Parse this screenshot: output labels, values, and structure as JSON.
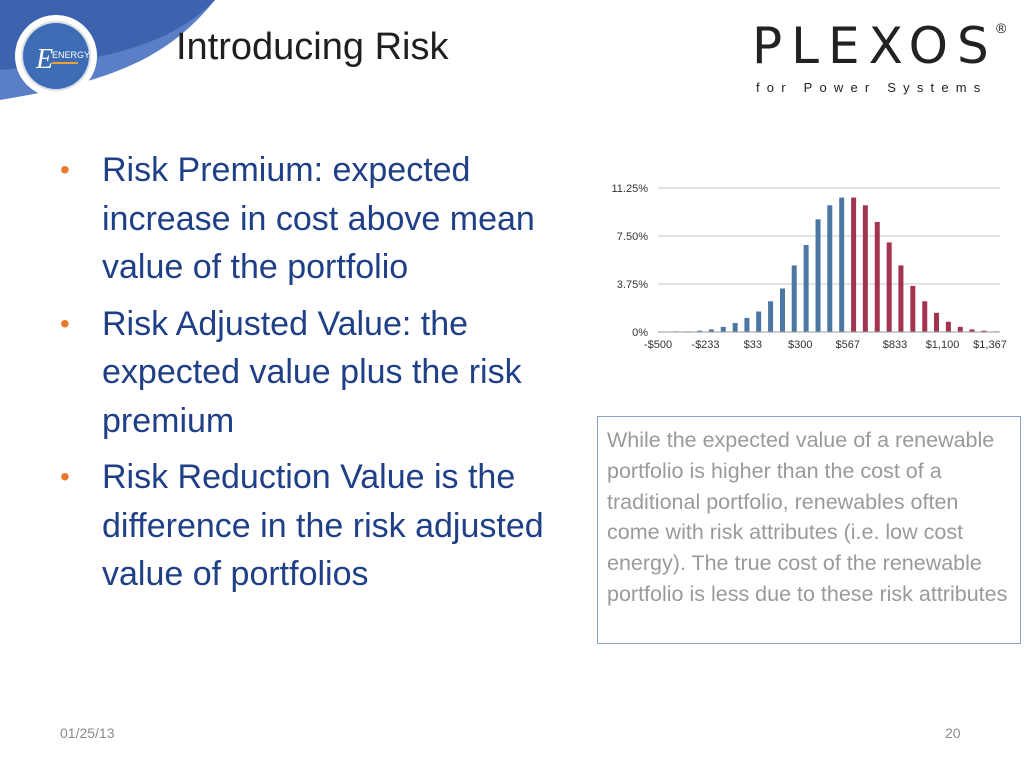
{
  "slide": {
    "title": "Introducing Risk",
    "logo_text": "ENERGY",
    "brand": {
      "name": "PLEXOS",
      "registered": "®",
      "subtitle": "for Power Systems"
    },
    "bullets": [
      "Risk Premium: expected increase in cost above mean value of the portfolio",
      "Risk Adjusted Value: the expected value plus the risk premium",
      "Risk Reduction Value is the difference in the risk adjusted value of portfolios"
    ],
    "callout": "While the expected value of a renewable portfolio is higher than the cost of a traditional portfolio, renewables often come with risk attributes (i.e. low cost energy).  The true cost of the renewable portfolio is less due to these risk attributes",
    "footer": {
      "date": "01/25/13",
      "page": "20"
    }
  },
  "colors": {
    "blue_bar": "#4c77a4",
    "red_bar": "#a2344f",
    "bullet_dot": "#e8792b",
    "text_blue": "#1f3f86"
  },
  "chart_data": {
    "type": "bar",
    "y_ticks": [
      "11.25%",
      "7.50%",
      "3.75%",
      "0%"
    ],
    "y_tick_values": [
      11.25,
      7.5,
      3.75,
      0
    ],
    "x_ticks": [
      "-$500",
      "-$233",
      "$33",
      "$300",
      "$567",
      "$833",
      "$1,100",
      "$1,367"
    ],
    "x_tick_values": [
      -500,
      -233,
      33,
      300,
      567,
      833,
      1100,
      1367
    ],
    "ylim": [
      0,
      11.25
    ],
    "xlim": [
      -500,
      1367
    ],
    "grid": true,
    "bar_width": 20,
    "series": [
      {
        "color": "#4c77a4",
        "x": [
          -400,
          -333,
          -266,
          -200,
          -133,
          -66,
          0,
          66,
          133,
          200,
          266,
          333,
          400,
          466,
          533
        ],
        "values": [
          0.05,
          0.05,
          0.1,
          0.2,
          0.4,
          0.7,
          1.1,
          1.6,
          2.4,
          3.4,
          5.2,
          6.8,
          8.8,
          9.9,
          10.5
        ]
      },
      {
        "color": "#a2344f",
        "x": [
          600,
          666,
          733,
          800,
          866,
          933,
          1000,
          1066,
          1133,
          1200,
          1266,
          1333,
          1400
        ],
        "values": [
          10.5,
          9.9,
          8.6,
          7.0,
          5.2,
          3.6,
          2.4,
          1.5,
          0.8,
          0.4,
          0.2,
          0.1,
          0.05
        ]
      }
    ]
  }
}
